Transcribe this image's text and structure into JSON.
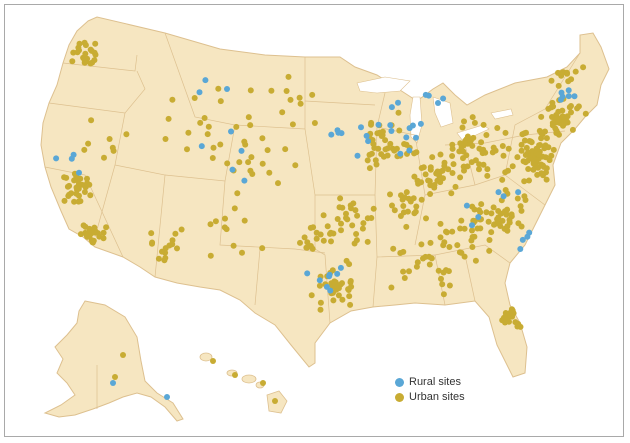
{
  "colors": {
    "land": "#f6e6c1",
    "border": "#ddc08f",
    "water": "#ffffff",
    "rural": "#5aa7d6",
    "urban": "#c8ac33"
  },
  "legend": {
    "rural_label": "Rural sites",
    "urban_label": "Urban sites"
  },
  "regions": [
    "contiguous-us",
    "alaska",
    "hawaii"
  ],
  "site_density": {
    "urban_primary_clusters": [
      "northeast-corridor",
      "great-lakes",
      "california-coast",
      "texas-triangle",
      "florida",
      "southeast",
      "puget-sound"
    ],
    "rural_primary_clusters": [
      "great-lakes",
      "texas",
      "northeast",
      "california",
      "great-plains"
    ]
  }
}
